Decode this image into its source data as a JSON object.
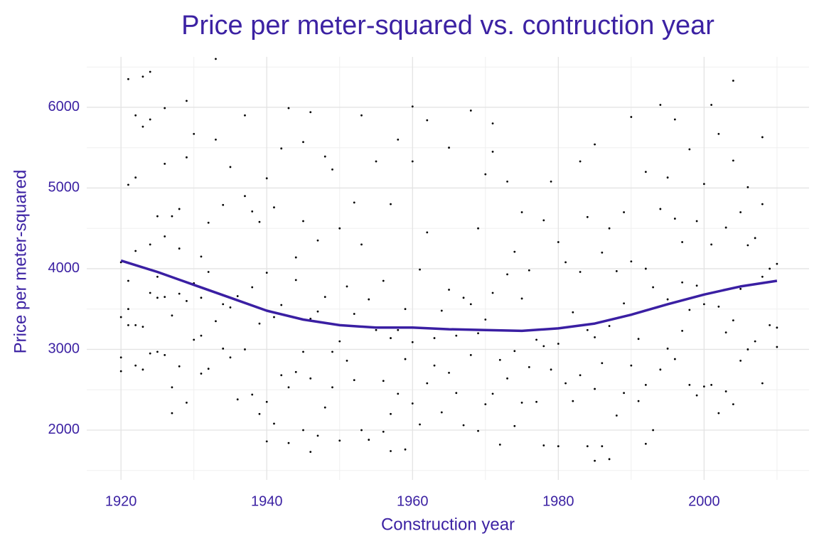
{
  "chart_data": {
    "type": "scatter",
    "title": "Price per meter-squared vs. contruction year",
    "x_label": "Construction year",
    "y_label": "Price per meter-squared",
    "text_color": "#3c22a3",
    "point_color": "#000000",
    "grid": true,
    "xlim": [
      1915.3,
      2014.4
    ],
    "ylim": [
      1383,
      6625
    ],
    "xticks": [
      1920,
      1940,
      1960,
      1980,
      2000
    ],
    "yticks": [
      2000,
      3000,
      4000,
      5000,
      6000
    ],
    "x_minor_ticks": [
      1930,
      1950,
      1970,
      1990,
      2010
    ],
    "y_minor_ticks": [
      1500,
      2500,
      3500,
      4500,
      5500,
      6500
    ],
    "x": [
      1920,
      1920,
      1920,
      1920,
      1921,
      1921,
      1921,
      1921,
      1921,
      1922,
      1922,
      1922,
      1922,
      1922,
      1923,
      1923,
      1923,
      1923,
      1924,
      1924,
      1924,
      1924,
      1924,
      1925,
      1925,
      1925,
      1925,
      1926,
      1926,
      1926,
      1926,
      1926,
      1927,
      1927,
      1927,
      1927,
      1928,
      1928,
      1928,
      1928,
      1929,
      1929,
      1929,
      1929,
      1930,
      1930,
      1930,
      1931,
      1931,
      1931,
      1931,
      1932,
      1932,
      1932,
      1933,
      1933,
      1933,
      1934,
      1934,
      1934,
      1935,
      1935,
      1935,
      1936,
      1936,
      1937,
      1937,
      1937,
      1938,
      1938,
      1938,
      1939,
      1939,
      1939,
      1940,
      1940,
      1940,
      1940,
      1941,
      1941,
      1941,
      1942,
      1942,
      1942,
      1943,
      1943,
      1943,
      1944,
      1944,
      1944,
      1945,
      1945,
      1945,
      1945,
      1946,
      1946,
      1946,
      1946,
      1947,
      1947,
      1947,
      1948,
      1948,
      1948,
      1949,
      1949,
      1949,
      1950,
      1950,
      1950,
      1951,
      1951,
      1952,
      1952,
      1952,
      1953,
      1953,
      1953,
      1954,
      1954,
      1955,
      1955,
      1956,
      1956,
      1956,
      1957,
      1957,
      1957,
      1957,
      1958,
      1958,
      1958,
      1959,
      1959,
      1959,
      1960,
      1960,
      1960,
      1960,
      1961,
      1961,
      1962,
      1962,
      1962,
      1963,
      1963,
      1964,
      1964,
      1965,
      1965,
      1965,
      1966,
      1966,
      1967,
      1967,
      1968,
      1968,
      1968,
      1969,
      1969,
      1969,
      1970,
      1970,
      1970,
      1971,
      1971,
      1971,
      1971,
      1972,
      1972,
      1973,
      1973,
      1973,
      1974,
      1974,
      1974,
      1975,
      1975,
      1975,
      1976,
      1976,
      1977,
      1977,
      1978,
      1978,
      1978,
      1979,
      1979,
      1980,
      1980,
      1980,
      1981,
      1981,
      1982,
      1982,
      1983,
      1983,
      1983,
      1984,
      1984,
      1984,
      1985,
      1985,
      1985,
      1985,
      1986,
      1986,
      1986,
      1987,
      1987,
      1987,
      1988,
      1988,
      1989,
      1989,
      1989,
      1990,
      1990,
      1990,
      1991,
      1991,
      1992,
      1992,
      1992,
      1992,
      1993,
      1993,
      1994,
      1994,
      1994,
      1995,
      1995,
      1995,
      1996,
      1996,
      1996,
      1997,
      1997,
      1997,
      1998,
      1998,
      1998,
      1999,
      1999,
      1999,
      2000,
      2000,
      2000,
      2001,
      2001,
      2001,
      2002,
      2002,
      2002,
      2003,
      2003,
      2003,
      2004,
      2004,
      2004,
      2004,
      2005,
      2005,
      2005,
      2006,
      2006,
      2006,
      2007,
      2007,
      2008,
      2008,
      2008,
      2008,
      2009,
      2009,
      2010,
      2010,
      2010
    ],
    "values": [
      2730,
      2900,
      3400,
      4080,
      6350,
      3300,
      3500,
      5040,
      3850,
      5900,
      4220,
      5130,
      3300,
      2800,
      6380,
      5760,
      3280,
      2750,
      6440,
      5850,
      4300,
      3700,
      2950,
      4650,
      3640,
      2970,
      3900,
      5990,
      5300,
      3650,
      2930,
      4400,
      2210,
      2530,
      3420,
      4650,
      4740,
      3690,
      4250,
      2790,
      6080,
      5380,
      2340,
      3600,
      5670,
      3820,
      3120,
      4150,
      3640,
      2700,
      3170,
      4570,
      3960,
      2760,
      6600,
      5600,
      3350,
      4790,
      3560,
      3010,
      5260,
      3520,
      2900,
      3660,
      2380,
      5900,
      4900,
      3000,
      4710,
      2440,
      3770,
      2200,
      4580,
      3320,
      5120,
      3950,
      1860,
      2350,
      4760,
      2080,
      3400,
      5490,
      3550,
      2680,
      5990,
      1840,
      2530,
      3860,
      2720,
      4140,
      5570,
      4590,
      2000,
      2970,
      5940,
      3380,
      1730,
      2640,
      4350,
      3470,
      1930,
      5390,
      3650,
      2280,
      5230,
      2970,
      2530,
      4500,
      3100,
      1870,
      3780,
      2860,
      4820,
      3440,
      2620,
      5900,
      2000,
      4300,
      3620,
      1880,
      5330,
      3240,
      3850,
      2610,
      1980,
      4800,
      3140,
      1740,
      2200,
      5600,
      3240,
      2450,
      3500,
      1760,
      2880,
      6010,
      5330,
      3090,
      2330,
      3990,
      2070,
      5840,
      4450,
      2580,
      3140,
      2800,
      3480,
      2220,
      5500,
      3740,
      2710,
      3170,
      2460,
      3640,
      2060,
      5960,
      3560,
      2930,
      4500,
      1990,
      3200,
      5170,
      3370,
      2320,
      5800,
      5450,
      3700,
      2450,
      2870,
      1820,
      5080,
      3930,
      2640,
      4210,
      2980,
      2050,
      4700,
      3630,
      2340,
      3980,
      2780,
      2350,
      3120,
      4600,
      1810,
      3040,
      5080,
      2750,
      4330,
      3070,
      1800,
      4080,
      2580,
      3460,
      2360,
      5330,
      3960,
      2680,
      4640,
      3240,
      1800,
      5540,
      3150,
      1620,
      2510,
      4200,
      2830,
      1800,
      4500,
      3290,
      1640,
      3970,
      2180,
      4700,
      3570,
      2460,
      5880,
      4090,
      2800,
      3130,
      2360,
      5200,
      4000,
      1830,
      2560,
      2000,
      3770,
      6030,
      4740,
      2750,
      5130,
      3620,
      3010,
      5850,
      4620,
      2880,
      4330,
      3830,
      3230,
      5480,
      3490,
      2560,
      4590,
      3790,
      2430,
      5050,
      3560,
      2540,
      6030,
      4300,
      2560,
      5670,
      3530,
      2210,
      4510,
      3210,
      2480,
      6330,
      5340,
      3360,
      2320,
      4700,
      3750,
      2860,
      5010,
      4290,
      3000,
      4380,
      3100,
      5630,
      4800,
      3900,
      2580,
      3300,
      4000,
      4060,
      3270,
      3030
    ],
    "smooth": {
      "color": "#3a1fa3",
      "x": [
        1920,
        1925,
        1930,
        1935,
        1940,
        1945,
        1950,
        1955,
        1960,
        1965,
        1970,
        1975,
        1980,
        1985,
        1990,
        1995,
        2000,
        2005,
        2010
      ],
      "values": [
        4100,
        3960,
        3800,
        3640,
        3480,
        3370,
        3300,
        3270,
        3270,
        3250,
        3240,
        3230,
        3260,
        3320,
        3430,
        3560,
        3680,
        3780,
        3850
      ]
    }
  }
}
